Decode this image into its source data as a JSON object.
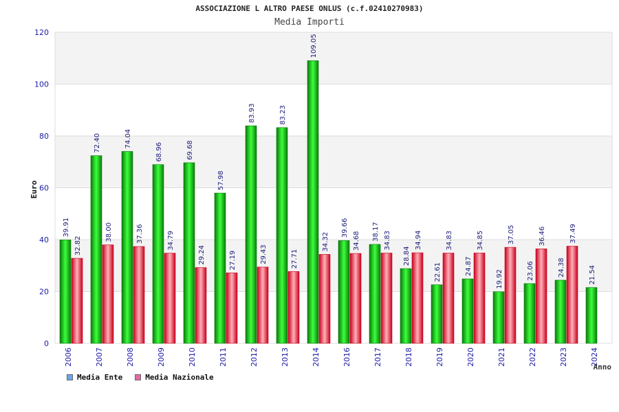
{
  "header": {
    "title": "ASSOCIAZIONE L ALTRO PAESE ONLUS (c.f.02410270983)",
    "subtitle": "Media Importi"
  },
  "chart_data": {
    "type": "bar",
    "title": "Media Importi",
    "ylabel": "Euro",
    "xlabel": "Anno",
    "ylim": [
      0,
      120
    ],
    "yticks": [
      0,
      20,
      40,
      60,
      80,
      100,
      120
    ],
    "grid": true,
    "legend_position": "bottom-left",
    "categories": [
      "2006",
      "2007",
      "2008",
      "2009",
      "2010",
      "2011",
      "2012",
      "2013",
      "2014",
      "2016",
      "2017",
      "2018",
      "2019",
      "2020",
      "2021",
      "2022",
      "2023",
      "2024"
    ],
    "series": [
      {
        "name": "Media Ente",
        "values": [
          39.91,
          72.4,
          74.04,
          68.96,
          69.68,
          57.98,
          83.93,
          83.23,
          109.05,
          39.66,
          38.17,
          28.84,
          22.61,
          24.87,
          19.92,
          23.06,
          24.38,
          21.54
        ],
        "labels": [
          "39.91",
          "72.40",
          "74.04",
          "68.96",
          "69.68",
          "57.98",
          "83.93",
          "83.23",
          "109.05",
          "39.66",
          "38.17",
          "28.84",
          "22.61",
          "24.87",
          "19.92",
          "23.06",
          "24.38",
          "21.54"
        ]
      },
      {
        "name": "Media Nazionale",
        "values": [
          32.82,
          38.0,
          37.36,
          34.79,
          29.24,
          27.19,
          29.43,
          27.71,
          34.32,
          34.68,
          34.83,
          34.94,
          34.83,
          34.85,
          37.05,
          36.46,
          37.49,
          null
        ],
        "labels": [
          "32.82",
          "38.00",
          "37.36",
          "34.79",
          "29.24",
          "27.19",
          "29.43",
          "27.71",
          "34.32",
          "34.68",
          "34.83",
          "34.94",
          "34.83",
          "34.85",
          "37.05",
          "36.46",
          "37.49",
          null
        ]
      }
    ],
    "colors": {
      "ente_dark": "#0a7a0a",
      "ente_light": "#3cff3c",
      "naz_dark": "#c8001e",
      "naz_light": "#ffb0b8",
      "legend_ente": "#6aa6ea",
      "legend_naz": "#e46aa6",
      "band": "#f3f3f3",
      "grid": "#dddddd"
    }
  }
}
